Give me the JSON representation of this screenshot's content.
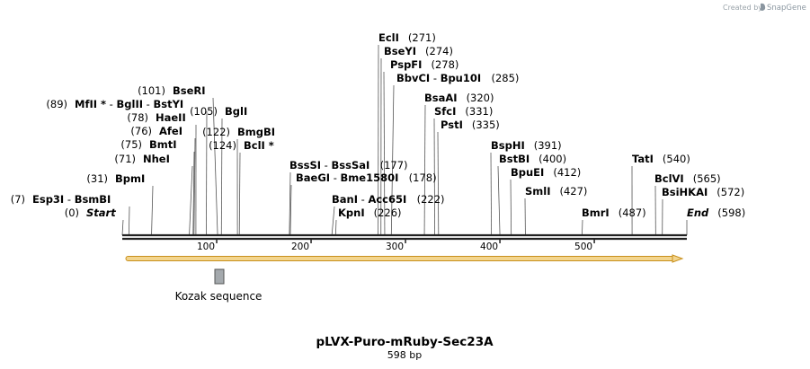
{
  "credit": {
    "prefix": "Created by",
    "brand": "SnapGene"
  },
  "title": "pLVX-Puro-mRuby-Sec23A",
  "length_label": "598 bp",
  "sequence_length": 598,
  "ticks": [
    "100",
    "200",
    "300",
    "400",
    "500"
  ],
  "colors": {
    "backbone": "#222222",
    "orf_fill": "#f3d58e",
    "orf_stroke": "#c8901c",
    "kozak": "#a4a9ad"
  },
  "features": [
    {
      "name": "Kozak sequence",
      "start": 101,
      "end": 106,
      "type": "box"
    },
    {
      "name": "ORF",
      "start": 0,
      "end": 598,
      "type": "arrow"
    }
  ],
  "sites": [
    {
      "names": [
        "Start"
      ],
      "pos": "(0)",
      "cut": 0,
      "italic": true
    },
    {
      "names": [
        "Esp3I",
        "BsmBI"
      ],
      "pos": "(7)",
      "cut": 7
    },
    {
      "names": [
        "BpmI"
      ],
      "pos": "(31)",
      "cut": 31
    },
    {
      "names": [
        "NheI"
      ],
      "pos": "(71)",
      "cut": 71
    },
    {
      "names": [
        "BmtI"
      ],
      "pos": "(75)",
      "cut": 75
    },
    {
      "names": [
        "AfeI"
      ],
      "pos": "(76)",
      "cut": 76
    },
    {
      "names": [
        "HaeII"
      ],
      "pos": "(78)",
      "cut": 78
    },
    {
      "names": [
        "MfII *",
        "BglII",
        "BstYI"
      ],
      "pos": "(89)",
      "cut": 89
    },
    {
      "names": [
        "BseRI"
      ],
      "pos": "(101)",
      "cut": 101
    },
    {
      "names": [
        "BglI"
      ],
      "pos": "(105)",
      "cut": 105
    },
    {
      "names": [
        "BmgBI"
      ],
      "pos": "(122)",
      "cut": 122
    },
    {
      "names": [
        "BclI *"
      ],
      "pos": "(124)",
      "cut": 124
    },
    {
      "names": [
        "BssSI",
        "BssSaI"
      ],
      "pos": "(177)",
      "cut": 177
    },
    {
      "names": [
        "BaeGI",
        "Bme1580I"
      ],
      "pos": "(178)",
      "cut": 178
    },
    {
      "names": [
        "BanI",
        "Acc65I"
      ],
      "pos": "(222)",
      "cut": 222
    },
    {
      "names": [
        "KpnI"
      ],
      "pos": "(226)",
      "cut": 226
    },
    {
      "names": [
        "EclI"
      ],
      "pos": "(271)",
      "cut": 271
    },
    {
      "names": [
        "BseYI"
      ],
      "pos": "(274)",
      "cut": 274
    },
    {
      "names": [
        "PspFI"
      ],
      "pos": "(278)",
      "cut": 278
    },
    {
      "names": [
        "BbvCI",
        "Bpu10I"
      ],
      "pos": "(285)",
      "cut": 285
    },
    {
      "names": [
        "BsaAI"
      ],
      "pos": "(320)",
      "cut": 320
    },
    {
      "names": [
        "SfcI"
      ],
      "pos": "(331)",
      "cut": 331
    },
    {
      "names": [
        "PstI"
      ],
      "pos": "(335)",
      "cut": 335
    },
    {
      "names": [
        "BspHI"
      ],
      "pos": "(391)",
      "cut": 391
    },
    {
      "names": [
        "BstBI"
      ],
      "pos": "(400)",
      "cut": 400
    },
    {
      "names": [
        "BpuEI"
      ],
      "pos": "(412)",
      "cut": 412
    },
    {
      "names": [
        "SmlI"
      ],
      "pos": "(427)",
      "cut": 427
    },
    {
      "names": [
        "BmrI"
      ],
      "pos": "(487)",
      "cut": 487
    },
    {
      "names": [
        "TatI"
      ],
      "pos": "(540)",
      "cut": 540
    },
    {
      "names": [
        "BclVI"
      ],
      "pos": "(565)",
      "cut": 565
    },
    {
      "names": [
        "BsiHKAI"
      ],
      "pos": "(572)",
      "cut": 572
    },
    {
      "names": [
        "End"
      ],
      "pos": "(598)",
      "cut": 598,
      "italic": true
    }
  ]
}
